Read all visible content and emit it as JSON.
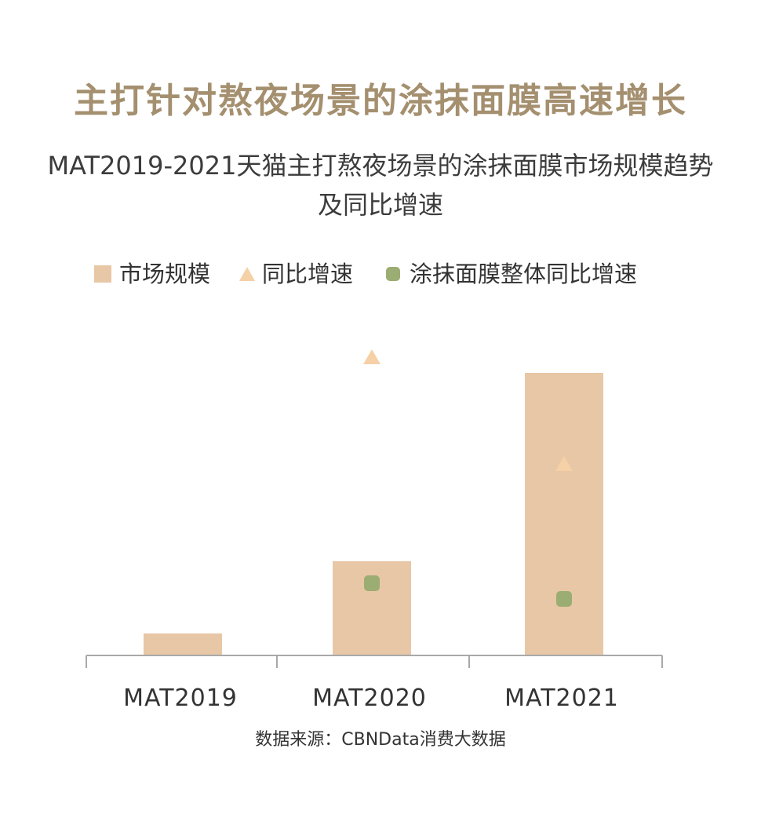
{
  "headline": "主打针对熬夜场景的涂抹面膜高速增长",
  "chart_data": {
    "type": "bar",
    "title_lines": [
      "MAT2019-2021天猫主打熬夜场景的涂抹面膜市场规模趋势",
      "及同比增速"
    ],
    "categories": [
      "MAT2019",
      "MAT2020",
      "MAT2021"
    ],
    "series": [
      {
        "name": "市场规模",
        "kind": "bar",
        "marker": "square",
        "color": "#e8c7a6",
        "values": [
          7,
          30,
          90
        ]
      },
      {
        "name": "同比增速",
        "kind": "point",
        "marker": "triangle",
        "color": "#f6d0a6",
        "values": [
          null,
          95,
          61
        ]
      },
      {
        "name": "涂抹面膜整体同比增速",
        "kind": "point",
        "marker": "circle",
        "color": "#9bad72",
        "values": [
          null,
          23,
          18
        ]
      }
    ],
    "ylim": [
      0,
      100
    ],
    "grid": false,
    "legend_position": "top-center",
    "source": "数据来源：CBNData消费大数据"
  }
}
